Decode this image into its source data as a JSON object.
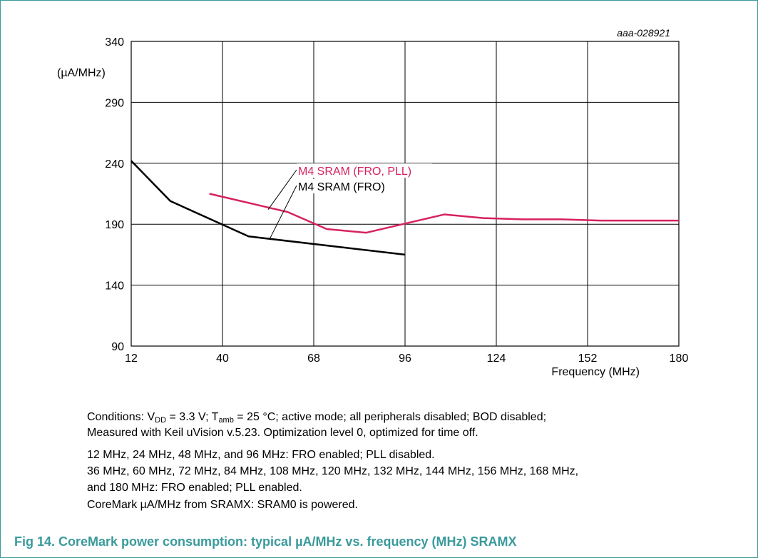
{
  "figure_id": "aaa-028921",
  "chart_data": {
    "type": "line",
    "ylabel": "(µA/MHz)",
    "xlabel": "Frequency (MHz)",
    "x_ticks": [
      12,
      40,
      68,
      96,
      124,
      152,
      180
    ],
    "y_ticks": [
      90,
      140,
      190,
      240,
      290,
      340
    ],
    "xlim": [
      12,
      180
    ],
    "ylim": [
      90,
      340
    ],
    "grid": true,
    "series": [
      {
        "name": "M4 SRAM (FRO, PLL)",
        "color": "#d6225e",
        "x": [
          36,
          60,
          72,
          84,
          108,
          120,
          132,
          144,
          156,
          168,
          180
        ],
        "y": [
          215,
          200,
          186,
          183,
          198,
          195,
          194,
          194,
          193,
          193,
          193
        ]
      },
      {
        "name": "M4 SRAM (FRO)",
        "color": "#000000",
        "x": [
          12,
          24,
          48,
          96
        ],
        "y": [
          242,
          209,
          180,
          165
        ]
      }
    ]
  },
  "notes": {
    "line1": {
      "prefix": "Conditions: V",
      "sub1": "DD",
      "mid": " = 3.3 V; T",
      "sub2": "amb",
      "suffix": " = 25 °C; active mode; all peripherals disabled; BOD disabled;"
    },
    "line2": "Measured with Keil uVision v.5.23. Optimization level 0, optimized for time off.",
    "line3": "12 MHz, 24 MHz, 48 MHz, and 96 MHz: FRO enabled; PLL disabled.",
    "line4": "36 MHz, 60 MHz, 72 MHz, 84 MHz, 108 MHz, 120 MHz, 132 MHz, 144 MHz, 156 MHz, 168 MHz,",
    "line5": "and 180 MHz: FRO enabled; PLL enabled.",
    "line6": "CoreMark µA/MHz from SRAMX: SRAM0 is powered."
  },
  "caption": "Fig 14.   CoreMark power consumption: typical µA/MHz vs. frequency (MHz) SRAMX"
}
